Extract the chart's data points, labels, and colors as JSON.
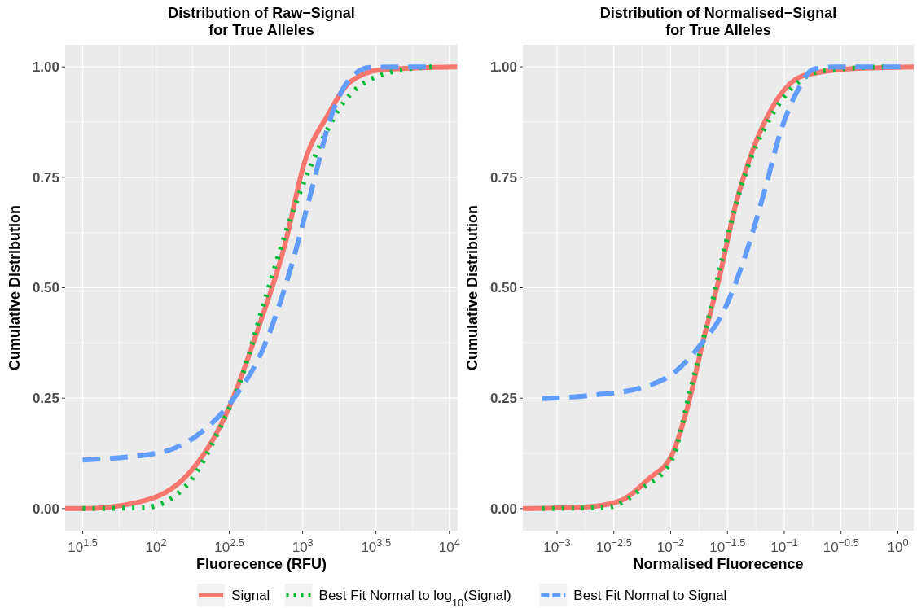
{
  "chart_data": [
    {
      "type": "line",
      "title": "Distribution of Raw−Signal\nfor True Alleles",
      "xlabel": "Fluorecence (RFU)",
      "ylabel": "Cumulative Distribution",
      "log": "x",
      "grid": true,
      "legend": "bottom",
      "xlim": [
        24,
        11400
      ],
      "ylim": [
        -0.05,
        1.05
      ],
      "xticks": [
        {
          "value": 31.62,
          "label": "10$^{1.5}$"
        },
        {
          "value": 100,
          "label": "10$^{2}$"
        },
        {
          "value": 316.2,
          "label": "10$^{2.5}$"
        },
        {
          "value": 1000,
          "label": "10$^{3}$"
        },
        {
          "value": 3162,
          "label": "10$^{3.5}$"
        },
        {
          "value": 10000,
          "label": "10$^{4}$"
        }
      ],
      "yticks": [
        {
          "value": 0,
          "label": "0.00"
        },
        {
          "value": 0.25,
          "label": "0.25"
        },
        {
          "value": 0.5,
          "label": "0.50"
        },
        {
          "value": 0.75,
          "label": "0.75"
        },
        {
          "value": 1,
          "label": "1.00"
        }
      ],
      "series": [
        {
          "name": "Signal",
          "color": "#f8766d",
          "line_style": "solid",
          "x": [
            24,
            31.6,
            72,
            155,
            316,
            500,
            760,
            1020,
            1480,
            2090,
            3470,
            11300
          ],
          "values": [
            0,
            0,
            0.013,
            0.068,
            0.23,
            0.41,
            0.6,
            0.78,
            0.89,
            0.965,
            0.994,
            1
          ]
        },
        {
          "name": "Best Fit Normal to log$_{10}$(Signal)",
          "color": "#00ba38",
          "line_style": "dotted",
          "x": [
            31.6,
            83,
            162,
            269,
            372,
            550,
            832,
            1259,
            1905,
            3890,
            7590
          ],
          "values": [
            0,
            0.002,
            0.053,
            0.178,
            0.285,
            0.47,
            0.66,
            0.81,
            0.92,
            0.987,
            1
          ]
        },
        {
          "name": "Best Fit Normal to Signal",
          "color": "#619cff",
          "line_style": "dashed",
          "x": [
            31.6,
            107,
            200,
            331,
            550,
            832,
            1148,
            1549,
            2089,
            2884,
            6918
          ],
          "values": [
            0.11,
            0.127,
            0.171,
            0.245,
            0.37,
            0.546,
            0.72,
            0.884,
            0.972,
            0.999,
            1
          ]
        }
      ]
    },
    {
      "type": "line",
      "title": "Distribution of Normalised−Signal\nfor True Alleles",
      "xlabel": "Normalised Fluorecence",
      "ylabel": "Cumulative Distribution",
      "log": "x",
      "grid": true,
      "legend": "bottom",
      "xlim": [
        0.0005,
        1.38
      ],
      "ylim": [
        -0.05,
        1.05
      ],
      "xticks": [
        {
          "value": 0.001,
          "label": "10$^{−3}$"
        },
        {
          "value": 0.003162,
          "label": "10$^{−2.5}$"
        },
        {
          "value": 0.01,
          "label": "10$^{−2}$"
        },
        {
          "value": 0.03162,
          "label": "10$^{−1.5}$"
        },
        {
          "value": 0.1,
          "label": "10$^{−1}$"
        },
        {
          "value": 0.3162,
          "label": "10$^{−0.5}$"
        },
        {
          "value": 1,
          "label": "10$^{0}$"
        }
      ],
      "yticks": [
        {
          "value": 0,
          "label": "0.00"
        },
        {
          "value": 0.25,
          "label": "0.25"
        },
        {
          "value": 0.5,
          "label": "0.50"
        },
        {
          "value": 0.75,
          "label": "0.75"
        },
        {
          "value": 1,
          "label": "1.00"
        }
      ],
      "series": [
        {
          "name": "Signal",
          "color": "#f8766d",
          "line_style": "solid",
          "x": [
            0.0005,
            0.00186,
            0.00355,
            0.00646,
            0.0102,
            0.0141,
            0.0195,
            0.0269,
            0.0372,
            0.0525,
            0.0776,
            0.148,
            0.398,
            1.38
          ],
          "values": [
            0,
            0.004,
            0.017,
            0.068,
            0.12,
            0.23,
            0.384,
            0.524,
            0.686,
            0.81,
            0.906,
            0.98,
            0.996,
            1
          ]
        },
        {
          "name": "Best Fit Normal to log$_{10}$(Signal)",
          "color": "#00ba38",
          "line_style": "dotted",
          "x": [
            0.00074,
            0.00275,
            0.00562,
            0.0102,
            0.0151,
            0.0224,
            0.0309,
            0.0457,
            0.0724,
            0.123,
            0.219,
            0.759
          ],
          "values": [
            0,
            0.003,
            0.046,
            0.11,
            0.274,
            0.45,
            0.605,
            0.76,
            0.877,
            0.958,
            0.991,
            1
          ]
        },
        {
          "name": "Best Fit Normal to Signal",
          "color": "#619cff",
          "line_style": "dashed",
          "x": [
            0.00074,
            0.00214,
            0.00562,
            0.011,
            0.0182,
            0.0288,
            0.0457,
            0.0676,
            0.0933,
            0.129,
            0.182,
            0.288,
            1.05
          ],
          "values": [
            0.249,
            0.257,
            0.274,
            0.31,
            0.37,
            0.443,
            0.575,
            0.722,
            0.855,
            0.943,
            0.995,
            1,
            1
          ]
        }
      ]
    }
  ]
}
